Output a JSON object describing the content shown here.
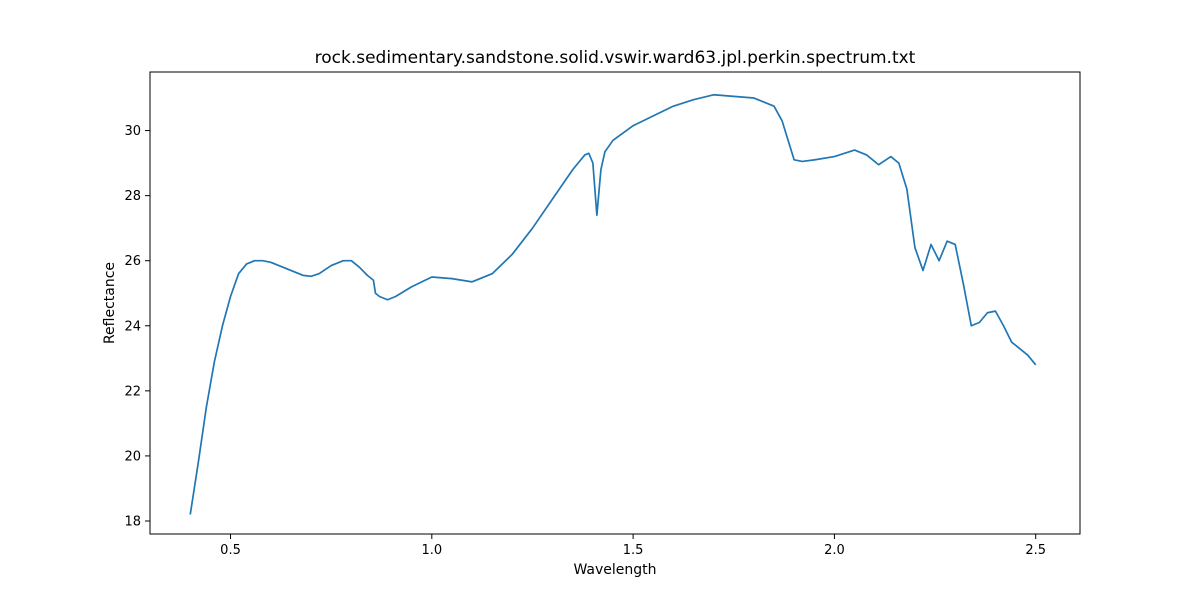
{
  "chart_data": {
    "type": "line",
    "title": "rock.sedimentary.sandstone.solid.vswir.ward63.jpl.perkin.spectrum.txt",
    "xlabel": "Wavelength",
    "ylabel": "Reflectance",
    "xlim": [
      0.3,
      2.61
    ],
    "ylim": [
      17.6,
      31.8
    ],
    "xticks": [
      0.5,
      1.0,
      1.5,
      2.0,
      2.5
    ],
    "xtick_labels": [
      "0.5",
      "1.0",
      "1.5",
      "2.0",
      "2.5"
    ],
    "yticks": [
      18,
      20,
      22,
      24,
      26,
      28,
      30
    ],
    "ytick_labels": [
      "18",
      "20",
      "22",
      "24",
      "26",
      "28",
      "30"
    ],
    "grid": false,
    "series": [
      {
        "color": "#1f77b4",
        "x": [
          0.4,
          0.42,
          0.44,
          0.46,
          0.48,
          0.5,
          0.52,
          0.54,
          0.56,
          0.58,
          0.6,
          0.62,
          0.65,
          0.68,
          0.7,
          0.72,
          0.75,
          0.78,
          0.8,
          0.82,
          0.84,
          0.855,
          0.86,
          0.87,
          0.89,
          0.91,
          0.95,
          1.0,
          1.05,
          1.1,
          1.15,
          1.2,
          1.25,
          1.3,
          1.35,
          1.38,
          1.39,
          1.4,
          1.41,
          1.42,
          1.43,
          1.45,
          1.5,
          1.55,
          1.6,
          1.65,
          1.7,
          1.75,
          1.8,
          1.85,
          1.87,
          1.89,
          1.9,
          1.92,
          1.95,
          2.0,
          2.05,
          2.08,
          2.11,
          2.14,
          2.16,
          2.18,
          2.2,
          2.22,
          2.24,
          2.26,
          2.28,
          2.3,
          2.32,
          2.34,
          2.36,
          2.38,
          2.4,
          2.42,
          2.44,
          2.46,
          2.48,
          2.5
        ],
        "y": [
          18.2,
          19.8,
          21.5,
          22.9,
          24.0,
          24.9,
          25.6,
          25.9,
          26.0,
          26.0,
          25.95,
          25.85,
          25.7,
          25.55,
          25.52,
          25.6,
          25.85,
          26.0,
          26.0,
          25.8,
          25.55,
          25.4,
          25.0,
          24.9,
          24.8,
          24.9,
          25.2,
          25.5,
          25.45,
          25.35,
          25.6,
          26.2,
          27.0,
          27.9,
          28.8,
          29.25,
          29.3,
          29.0,
          27.4,
          28.8,
          29.35,
          29.7,
          30.15,
          30.45,
          30.75,
          30.95,
          31.1,
          31.05,
          31.0,
          30.75,
          30.3,
          29.5,
          29.1,
          29.05,
          29.1,
          29.2,
          29.4,
          29.25,
          28.95,
          29.2,
          29.0,
          28.2,
          26.4,
          25.7,
          26.5,
          26.0,
          26.6,
          26.5,
          25.3,
          24.0,
          24.1,
          24.4,
          24.45,
          24.0,
          23.5,
          23.3,
          23.1,
          22.8
        ]
      }
    ]
  }
}
